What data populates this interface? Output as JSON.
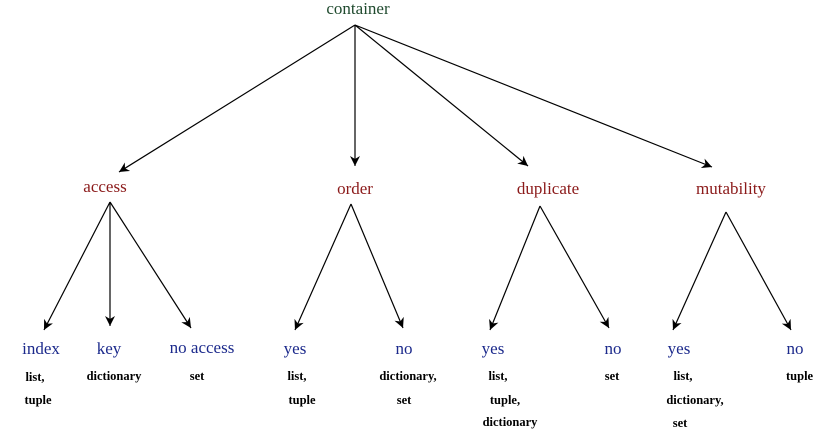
{
  "root": "container",
  "categories": [
    {
      "label": "access",
      "values": [
        {
          "label": "index",
          "examples": [
            "list,",
            "tuple"
          ]
        },
        {
          "label": "key",
          "examples": [
            "dictionary"
          ]
        },
        {
          "label": "no access",
          "examples": [
            "set"
          ]
        }
      ]
    },
    {
      "label": "order",
      "values": [
        {
          "label": "yes",
          "examples": [
            "list,",
            "tuple"
          ]
        },
        {
          "label": "no",
          "examples": [
            "dictionary,",
            "set"
          ]
        }
      ]
    },
    {
      "label": "duplicate",
      "values": [
        {
          "label": "yes",
          "examples": [
            "list,",
            "tuple,",
            "dictionary"
          ]
        },
        {
          "label": "no",
          "examples": [
            "set"
          ]
        }
      ]
    },
    {
      "label": "mutability",
      "values": [
        {
          "label": "yes",
          "examples": [
            "list,",
            "dictionary,",
            "set"
          ]
        },
        {
          "label": "no",
          "examples": [
            "tuple"
          ]
        }
      ]
    }
  ],
  "colors": {
    "root": "#1f4a2e",
    "category": "#8b1a1a",
    "value": "#1c2a8c",
    "example": "#000000"
  }
}
